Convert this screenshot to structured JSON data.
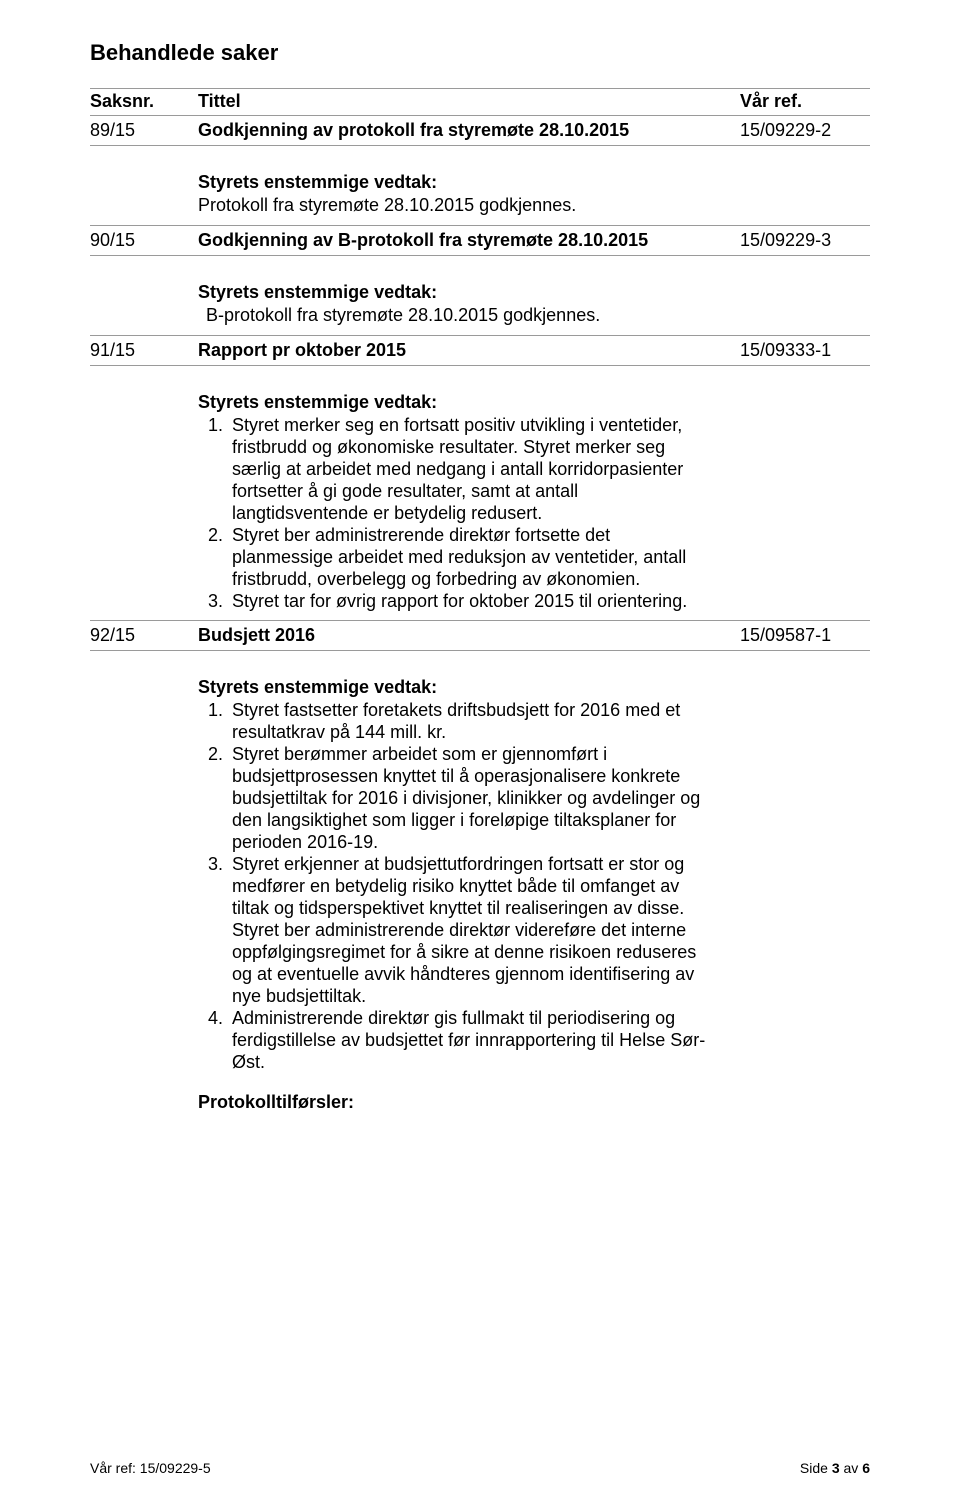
{
  "page_title": "Behandlede saker",
  "header": {
    "saksnr": "Saksnr.",
    "tittel": "Tittel",
    "ref": "Vår ref."
  },
  "cases": [
    {
      "id": "89/15",
      "title": "Godkjenning av protokoll fra styremøte 28.10.2015",
      "ref": "15/09229-2",
      "title_bold": true,
      "vedtak_heading": "Styrets enstemmige vedtak:",
      "vedtak_text": "Protokoll fra styremøte 28.10.2015 godkjennes."
    },
    {
      "id": "90/15",
      "title": "Godkjenning av B-protokoll fra styremøte 28.10.2015",
      "ref": "15/09229-3",
      "title_bold": true,
      "vedtak_heading": "Styrets enstemmige vedtak:",
      "vedtak_text": " B-protokoll fra styremøte 28.10.2015 godkjennes.",
      "indent": true
    },
    {
      "id": "91/15",
      "title": "Rapport pr oktober 2015",
      "ref": "15/09333-1",
      "title_bold": true,
      "vedtak_heading": "Styrets enstemmige vedtak:",
      "list": [
        "Styret merker seg en fortsatt positiv utvikling i ventetider, fristbrudd og økonomiske resultater. Styret merker seg særlig at arbeidet med nedgang i antall korridorpasienter fortsetter å gi gode resultater, samt at antall langtidsventende er betydelig redusert.",
        "Styret ber administrerende direktør fortsette det planmessige arbeidet med reduksjon av ventetider, antall fristbrudd, overbelegg og forbedring av økonomien.",
        "Styret tar for øvrig rapport for oktober 2015 til orientering."
      ]
    },
    {
      "id": "92/15",
      "title": "Budsjett 2016",
      "ref": "15/09587-1",
      "title_bold": true,
      "vedtak_heading": "Styrets enstemmige vedtak:",
      "list": [
        "Styret fastsetter foretakets driftsbudsjett for 2016 med et resultatkrav på 144 mill. kr.",
        "Styret berømmer arbeidet som er gjennomført i budsjettprosessen knyttet til å operasjonalisere konkrete budsjettiltak for 2016 i divisjoner, klinikker og avdelinger og den langsiktighet som ligger i foreløpige tiltaksplaner for perioden 2016-19.",
        "Styret erkjenner at budsjettutfordringen fortsatt er stor og medfører en betydelig risiko knyttet både til omfanget av tiltak og tidsperspektivet knyttet til realiseringen av disse. Styret ber administrerende direktør videreføre det interne oppfølgingsregimet for å sikre at denne risikoen reduseres og at eventuelle avvik håndteres gjennom identifisering av nye budsjettiltak.",
        "Administrerende direktør gis fullmakt til periodisering og ferdigstillelse av budsjettet før innrapportering til Helse Sør-Øst."
      ],
      "proto_heading": "Protokolltilførsler:",
      "no_bottom_border": true
    }
  ],
  "footer": {
    "left": "Vår ref: 15/09229-5",
    "right_prefix": "Side ",
    "right_page": "3",
    "right_mid": " av ",
    "right_total": "6"
  }
}
